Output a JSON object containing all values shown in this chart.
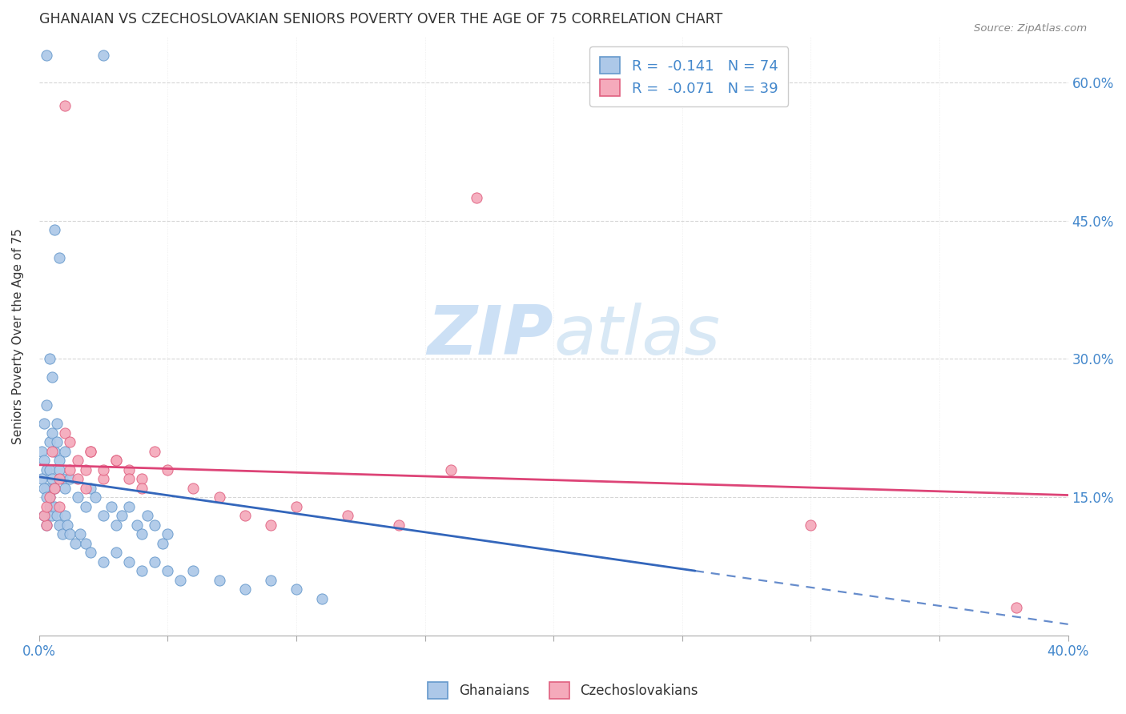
{
  "title": "GHANAIAN VS CZECHOSLOVAKIAN SENIORS POVERTY OVER THE AGE OF 75 CORRELATION CHART",
  "source": "Source: ZipAtlas.com",
  "ylabel": "Seniors Poverty Over the Age of 75",
  "y_ticks": [
    0.0,
    0.15,
    0.3,
    0.45,
    0.6
  ],
  "y_tick_labels": [
    "",
    "15.0%",
    "30.0%",
    "45.0%",
    "60.0%"
  ],
  "x_ticks": [
    0.0,
    0.05,
    0.1,
    0.15,
    0.2,
    0.25,
    0.3,
    0.35,
    0.4
  ],
  "xlim": [
    0.0,
    0.4
  ],
  "ylim": [
    0.0,
    0.65
  ],
  "r_ghanaian": -0.141,
  "n_ghanaian": 74,
  "r_czechoslovakian": -0.071,
  "n_czechoslovakian": 39,
  "color_ghanaian_fill": "#adc8e8",
  "color_ghanaian_edge": "#6699cc",
  "color_czechoslovakian_fill": "#f5aabb",
  "color_czechoslovakian_edge": "#e06080",
  "color_trendline_ghanaian": "#3366bb",
  "color_trendline_czechoslovakian": "#dd4477",
  "color_axis": "#4488cc",
  "color_text": "#333333",
  "color_source": "#888888",
  "color_grid_solid": "#cccccc",
  "color_grid_dot": "#cccccc",
  "color_watermark": "#cce0f5",
  "background_color": "#ffffff",
  "trend_g_x0": 0.0,
  "trend_g_y0": 0.172,
  "trend_g_slope": -0.4,
  "trend_g_solid_end": 0.255,
  "trend_g_dashed_end": 0.4,
  "trend_c_x0": 0.0,
  "trend_c_y0": 0.185,
  "trend_c_slope": -0.082,
  "trend_c_end": 0.4,
  "ghanaian_x": [
    0.003,
    0.025,
    0.006,
    0.008,
    0.004,
    0.005,
    0.003,
    0.002,
    0.004,
    0.001,
    0.002,
    0.003,
    0.005,
    0.006,
    0.007,
    0.003,
    0.004,
    0.005,
    0.007,
    0.008,
    0.009,
    0.01,
    0.004,
    0.005,
    0.006,
    0.002,
    0.003,
    0.008,
    0.01,
    0.012,
    0.015,
    0.018,
    0.02,
    0.022,
    0.025,
    0.028,
    0.03,
    0.032,
    0.035,
    0.038,
    0.04,
    0.042,
    0.045,
    0.048,
    0.05,
    0.001,
    0.002,
    0.003,
    0.004,
    0.005,
    0.006,
    0.007,
    0.008,
    0.009,
    0.01,
    0.011,
    0.012,
    0.014,
    0.016,
    0.018,
    0.02,
    0.025,
    0.03,
    0.035,
    0.04,
    0.045,
    0.05,
    0.055,
    0.06,
    0.07,
    0.08,
    0.09,
    0.1,
    0.11
  ],
  "ghanaian_y": [
    0.63,
    0.63,
    0.44,
    0.41,
    0.3,
    0.28,
    0.25,
    0.23,
    0.21,
    0.2,
    0.19,
    0.18,
    0.22,
    0.2,
    0.23,
    0.16,
    0.18,
    0.17,
    0.21,
    0.19,
    0.17,
    0.2,
    0.15,
    0.14,
    0.16,
    0.13,
    0.12,
    0.18,
    0.16,
    0.17,
    0.15,
    0.14,
    0.16,
    0.15,
    0.13,
    0.14,
    0.12,
    0.13,
    0.14,
    0.12,
    0.11,
    0.13,
    0.12,
    0.1,
    0.11,
    0.17,
    0.16,
    0.15,
    0.14,
    0.13,
    0.14,
    0.13,
    0.12,
    0.11,
    0.13,
    0.12,
    0.11,
    0.1,
    0.11,
    0.1,
    0.09,
    0.08,
    0.09,
    0.08,
    0.07,
    0.08,
    0.07,
    0.06,
    0.07,
    0.06,
    0.05,
    0.06,
    0.05,
    0.04
  ],
  "czechoslovakian_x": [
    0.01,
    0.003,
    0.005,
    0.008,
    0.17,
    0.01,
    0.012,
    0.015,
    0.018,
    0.02,
    0.025,
    0.03,
    0.035,
    0.04,
    0.002,
    0.003,
    0.004,
    0.006,
    0.008,
    0.012,
    0.015,
    0.018,
    0.02,
    0.025,
    0.03,
    0.035,
    0.04,
    0.045,
    0.05,
    0.06,
    0.07,
    0.08,
    0.09,
    0.1,
    0.12,
    0.14,
    0.16,
    0.3,
    0.38
  ],
  "czechoslovakian_y": [
    0.575,
    0.12,
    0.2,
    0.17,
    0.475,
    0.22,
    0.21,
    0.19,
    0.18,
    0.2,
    0.17,
    0.19,
    0.18,
    0.17,
    0.13,
    0.14,
    0.15,
    0.16,
    0.14,
    0.18,
    0.17,
    0.16,
    0.2,
    0.18,
    0.19,
    0.17,
    0.16,
    0.2,
    0.18,
    0.16,
    0.15,
    0.13,
    0.12,
    0.14,
    0.13,
    0.12,
    0.18,
    0.12,
    0.03
  ]
}
